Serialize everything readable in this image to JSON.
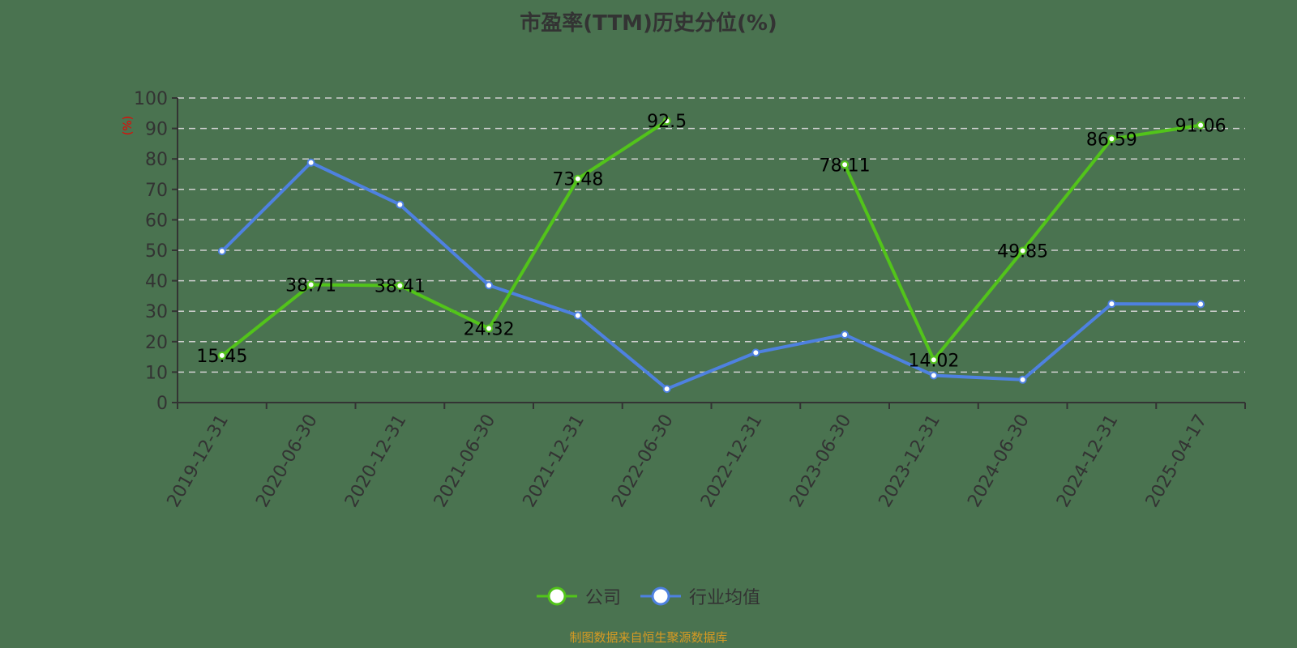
{
  "title": "市盈率(TTM)历史分位(%)",
  "y_axis_unit": "(%)",
  "legend": [
    {
      "label": "公司",
      "color": "#52c41a"
    },
    {
      "label": "行业均值",
      "color": "#4e81e0"
    }
  ],
  "footer": "制图数据来自恒生聚源数据库",
  "chart_data": {
    "type": "line",
    "title": "市盈率(TTM)历史分位(%)",
    "xlabel": "",
    "ylabel": "(%)",
    "ylim": [
      0,
      100
    ],
    "yticks": [
      0,
      10,
      20,
      30,
      40,
      50,
      60,
      70,
      80,
      90,
      100
    ],
    "grid": true,
    "legend_position": "bottom",
    "categories": [
      "2019-12-31",
      "2020-06-30",
      "2020-12-31",
      "2021-06-30",
      "2021-12-31",
      "2022-06-30",
      "2022-12-31",
      "2023-06-30",
      "2023-12-31",
      "2024-06-30",
      "2024-12-31",
      "2025-04-17"
    ],
    "series": [
      {
        "name": "公司",
        "color": "#52c41a",
        "show_labels": true,
        "values": [
          15.45,
          38.71,
          38.41,
          24.32,
          73.48,
          92.5,
          null,
          78.11,
          14.02,
          49.85,
          86.59,
          91.06
        ]
      },
      {
        "name": "行业均值",
        "color": "#4e81e0",
        "show_labels": false,
        "values": [
          49.7,
          78.8,
          65.0,
          38.5,
          28.6,
          4.5,
          16.4,
          22.3,
          8.9,
          7.5,
          32.4,
          32.3
        ]
      }
    ]
  }
}
